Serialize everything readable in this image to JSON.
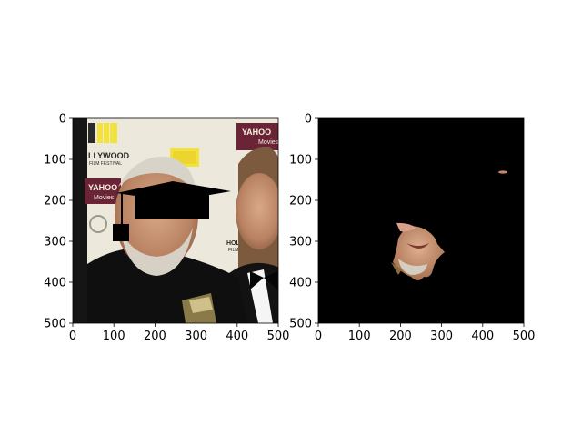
{
  "chart_data": [
    {
      "type": "image",
      "content": "photo of two men in formal attire at a film-festival backdrop; a black graduation-cap shape and a black box are drawn over the left man's head",
      "xlim": [
        0,
        500
      ],
      "ylim": [
        500,
        0
      ],
      "xticks": [
        0,
        100,
        200,
        300,
        400,
        500
      ],
      "yticks": [
        0,
        100,
        200,
        300,
        400,
        500
      ],
      "background_texts": [
        "YAHOO Movies",
        "LLYWOOD",
        "FILM FESTIVAL",
        "YAHOO Movies",
        "HOLLYWOOD",
        "FILM FE"
      ],
      "colors": {
        "background": "#f0eee2",
        "suit": "#0d0d0d",
        "skin": "#c89272",
        "hair": "#d8d3c9",
        "logo_yellow": "#f2e23a",
        "logo_maroon": "#6a2436"
      }
    },
    {
      "type": "image",
      "content": "segmentation result: only a patch of the left man's face visible, everything else black",
      "xlim": [
        0,
        500
      ],
      "ylim": [
        500,
        0
      ],
      "xticks": [
        0,
        100,
        200,
        300,
        400,
        500
      ],
      "yticks": [
        0,
        100,
        200,
        300,
        400,
        500
      ],
      "colors": {
        "mask": "#000000",
        "face": "#c89272"
      }
    }
  ],
  "axes": [
    {
      "xticklabels": [
        "0",
        "100",
        "200",
        "300",
        "400",
        "500"
      ],
      "yticklabels": [
        "0",
        "100",
        "200",
        "300",
        "400",
        "500"
      ]
    },
    {
      "xticklabels": [
        "0",
        "100",
        "200",
        "300",
        "400",
        "500"
      ],
      "yticklabels": [
        "0",
        "100",
        "200",
        "300",
        "400",
        "500"
      ]
    }
  ],
  "photo_texts": {
    "yahoo_top": "YAHOO",
    "movies_top": "Movies",
    "llywood": "LLYWOOD",
    "festival": "FILM FESTIVAL",
    "yahoo_mid": "YAHOO",
    "movies_mid": "Movies",
    "hollywood": "HOLLYWOOD",
    "film_fe": "FILM FE"
  }
}
